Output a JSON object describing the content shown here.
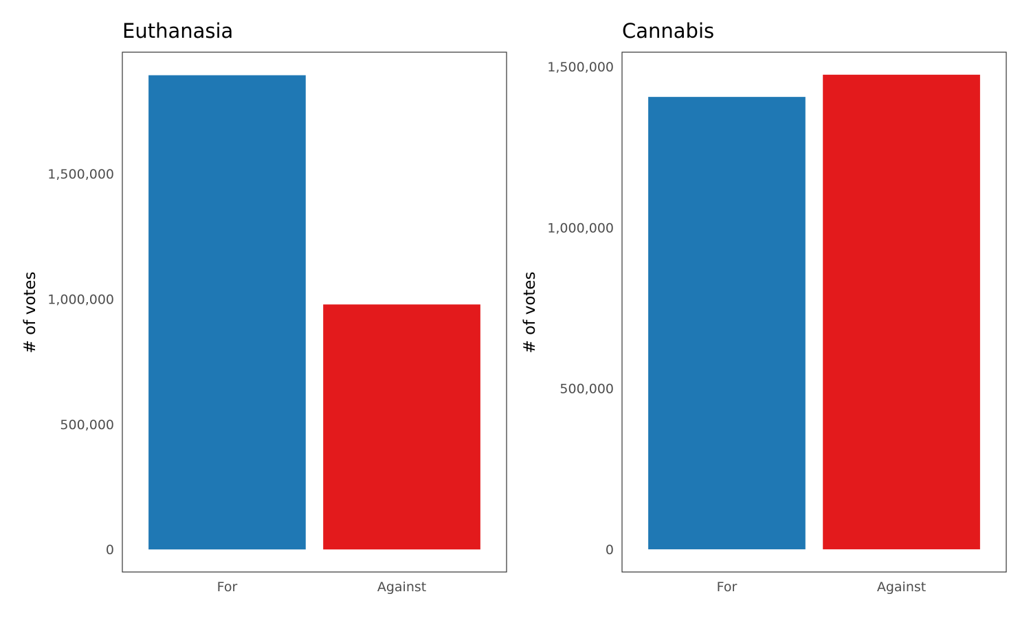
{
  "chart_data": [
    {
      "type": "bar",
      "title": "Euthanasia",
      "xlabel": "",
      "ylabel": "# of votes",
      "categories": [
        "For",
        "Against"
      ],
      "values": [
        1893000,
        978000
      ],
      "colors": [
        "#1f78b4",
        "#e31a1c"
      ],
      "ylim": [
        -90000,
        1985000
      ],
      "yticks": [
        0,
        500000,
        1000000,
        1500000
      ],
      "ytick_labels": [
        "0",
        "500,000",
        "1,000,000",
        "1,500,000"
      ],
      "grid": false
    },
    {
      "type": "bar",
      "title": "Cannabis",
      "xlabel": "",
      "ylabel": "# of votes",
      "categories": [
        "For",
        "Against"
      ],
      "values": [
        1406000,
        1475000
      ],
      "colors": [
        "#1f78b4",
        "#e31a1c"
      ],
      "ylim": [
        -70500,
        1545000
      ],
      "yticks": [
        0,
        500000,
        1000000,
        1500000
      ],
      "ytick_labels": [
        "0",
        "500,000",
        "1,000,000",
        "1,500,000"
      ],
      "grid": false
    }
  ]
}
